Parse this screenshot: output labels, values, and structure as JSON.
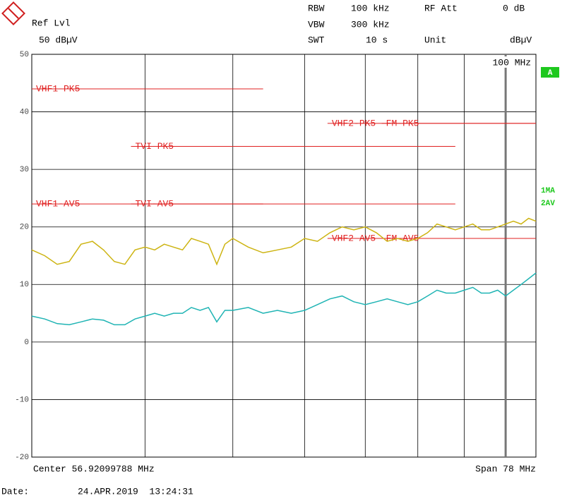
{
  "header": {
    "ref_lvl_label": "Ref Lvl",
    "ref_lvl": "50 dBµV",
    "settings": [
      {
        "label": "RBW",
        "value": "100 kHz"
      },
      {
        "label": "VBW",
        "value": "300 kHz"
      },
      {
        "label": "SWT",
        "value": "10 s"
      },
      {
        "label": "RF Att",
        "value": "0 dB"
      },
      {
        "label": "Unit",
        "value": "dBµV"
      }
    ],
    "marker_box": "A"
  },
  "footer": {
    "center": "Center 56.92099788 MHz",
    "span": "Span 78 MHz",
    "date_label": "Date:",
    "date": "24.APR.2019  13:24:31"
  },
  "chart_data": {
    "type": "line",
    "x": [
      30,
      31,
      32,
      33,
      34,
      35,
      36,
      37,
      38,
      39,
      40,
      41,
      42,
      43,
      44,
      45,
      46,
      47,
      48,
      49,
      50,
      52,
      54,
      56,
      58,
      60,
      62,
      64,
      66,
      68,
      70,
      72,
      74,
      76,
      78,
      80,
      82,
      84,
      86,
      88,
      90,
      92,
      94,
      96,
      98,
      100,
      102,
      104,
      106,
      108
    ],
    "series": [
      {
        "name": "1MA",
        "color": "#cdb412",
        "values": [
          16,
          15,
          13.5,
          14,
          17,
          17.5,
          16,
          14,
          13.5,
          16,
          16.5,
          16,
          17,
          16.5,
          16,
          18,
          17.5,
          17,
          13.5,
          17,
          18,
          16.5,
          15.5,
          16,
          16.5,
          18,
          17.5,
          19,
          20,
          19.5,
          20,
          19,
          17.5,
          18,
          17.5,
          18,
          19,
          20.5,
          20,
          19.5,
          20,
          20.5,
          19.5,
          19.5,
          20,
          20.5,
          21,
          20.5,
          21.5,
          21
        ]
      },
      {
        "name": "2AV",
        "color": "#1fb4b4",
        "values": [
          4.5,
          4,
          3.2,
          3,
          3.5,
          4,
          3.8,
          3,
          3,
          4,
          4.5,
          5,
          4.5,
          5,
          5,
          6,
          5.5,
          6,
          3.5,
          5.5,
          5.5,
          6,
          5,
          5.5,
          5,
          5.5,
          6.5,
          7.5,
          8,
          7,
          6.5,
          7,
          7.5,
          7,
          6.5,
          7,
          8,
          9,
          8.5,
          8.5,
          9,
          9.5,
          8.5,
          8.5,
          9,
          8,
          9,
          10,
          11,
          12
        ]
      }
    ],
    "limit_lines": [
      {
        "name": "VHF1-PK5",
        "value": 44,
        "x": [
          30,
          54
        ]
      },
      {
        "name": "VHF2-PK5",
        "value": 38,
        "x": [
          63.6,
          108
        ]
      },
      {
        "name": "FM-PK5",
        "value": 38,
        "x": [
          73,
          108
        ]
      },
      {
        "name": "TVI-PK5",
        "value": 34,
        "x": [
          38.6,
          88
        ]
      },
      {
        "name": "VHF1-AV5",
        "value": 24,
        "x": [
          30,
          54
        ]
      },
      {
        "name": "TVI-AV5",
        "value": 24,
        "x": [
          38.6,
          88
        ]
      },
      {
        "name": "VHF2-AV5",
        "value": 18,
        "x": [
          63.6,
          108
        ]
      },
      {
        "name": "FM-AV5",
        "value": 18,
        "x": [
          73,
          108
        ]
      }
    ],
    "limit_color": "#e02020",
    "marker_line": {
      "value": 100,
      "label": "100 MHz"
    },
    "xlim": [
      30,
      108
    ],
    "xscale": "log",
    "xticks": [
      40,
      50,
      60,
      70,
      80,
      90,
      100
    ],
    "ylim": [
      -20,
      50
    ],
    "yticks": [
      -20,
      -10,
      0,
      10,
      20,
      30,
      40,
      50
    ],
    "grid": true
  }
}
